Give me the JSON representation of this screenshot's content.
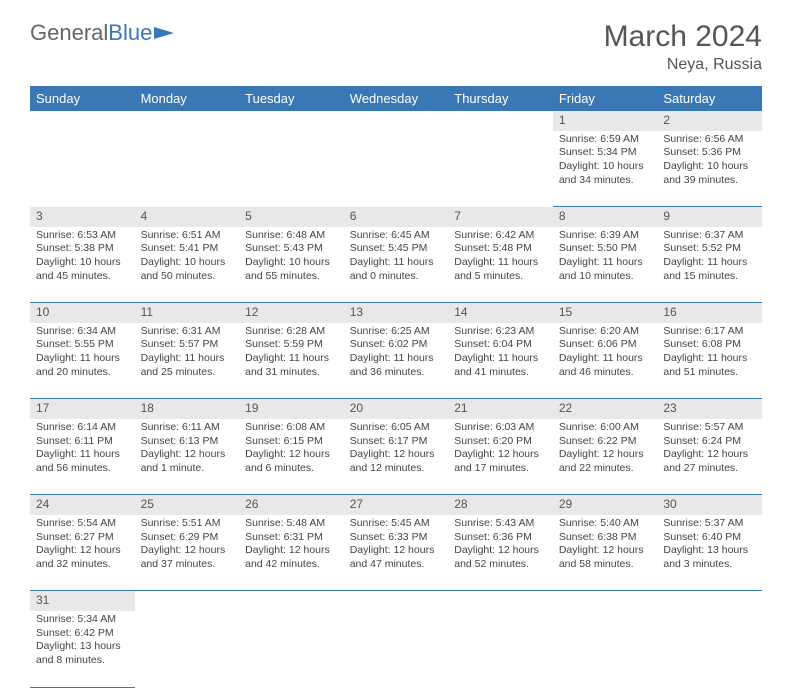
{
  "logo": {
    "general": "General",
    "blue": "Blue"
  },
  "title": "March 2024",
  "location": "Neya, Russia",
  "dayHeaders": [
    "Sunday",
    "Monday",
    "Tuesday",
    "Wednesday",
    "Thursday",
    "Friday",
    "Saturday"
  ],
  "colors": {
    "headerBg": "#3a78b5",
    "headerText": "#ffffff",
    "dayNumBg": "#e8e8e8",
    "border": "#3a78b5",
    "text": "#444444"
  },
  "weeks": [
    [
      null,
      null,
      null,
      null,
      null,
      {
        "n": "1",
        "sr": "Sunrise: 6:59 AM",
        "ss": "Sunset: 5:34 PM",
        "dl1": "Daylight: 10 hours",
        "dl2": "and 34 minutes."
      },
      {
        "n": "2",
        "sr": "Sunrise: 6:56 AM",
        "ss": "Sunset: 5:36 PM",
        "dl1": "Daylight: 10 hours",
        "dl2": "and 39 minutes."
      }
    ],
    [
      {
        "n": "3",
        "sr": "Sunrise: 6:53 AM",
        "ss": "Sunset: 5:38 PM",
        "dl1": "Daylight: 10 hours",
        "dl2": "and 45 minutes."
      },
      {
        "n": "4",
        "sr": "Sunrise: 6:51 AM",
        "ss": "Sunset: 5:41 PM",
        "dl1": "Daylight: 10 hours",
        "dl2": "and 50 minutes."
      },
      {
        "n": "5",
        "sr": "Sunrise: 6:48 AM",
        "ss": "Sunset: 5:43 PM",
        "dl1": "Daylight: 10 hours",
        "dl2": "and 55 minutes."
      },
      {
        "n": "6",
        "sr": "Sunrise: 6:45 AM",
        "ss": "Sunset: 5:45 PM",
        "dl1": "Daylight: 11 hours",
        "dl2": "and 0 minutes."
      },
      {
        "n": "7",
        "sr": "Sunrise: 6:42 AM",
        "ss": "Sunset: 5:48 PM",
        "dl1": "Daylight: 11 hours",
        "dl2": "and 5 minutes."
      },
      {
        "n": "8",
        "sr": "Sunrise: 6:39 AM",
        "ss": "Sunset: 5:50 PM",
        "dl1": "Daylight: 11 hours",
        "dl2": "and 10 minutes."
      },
      {
        "n": "9",
        "sr": "Sunrise: 6:37 AM",
        "ss": "Sunset: 5:52 PM",
        "dl1": "Daylight: 11 hours",
        "dl2": "and 15 minutes."
      }
    ],
    [
      {
        "n": "10",
        "sr": "Sunrise: 6:34 AM",
        "ss": "Sunset: 5:55 PM",
        "dl1": "Daylight: 11 hours",
        "dl2": "and 20 minutes."
      },
      {
        "n": "11",
        "sr": "Sunrise: 6:31 AM",
        "ss": "Sunset: 5:57 PM",
        "dl1": "Daylight: 11 hours",
        "dl2": "and 25 minutes."
      },
      {
        "n": "12",
        "sr": "Sunrise: 6:28 AM",
        "ss": "Sunset: 5:59 PM",
        "dl1": "Daylight: 11 hours",
        "dl2": "and 31 minutes."
      },
      {
        "n": "13",
        "sr": "Sunrise: 6:25 AM",
        "ss": "Sunset: 6:02 PM",
        "dl1": "Daylight: 11 hours",
        "dl2": "and 36 minutes."
      },
      {
        "n": "14",
        "sr": "Sunrise: 6:23 AM",
        "ss": "Sunset: 6:04 PM",
        "dl1": "Daylight: 11 hours",
        "dl2": "and 41 minutes."
      },
      {
        "n": "15",
        "sr": "Sunrise: 6:20 AM",
        "ss": "Sunset: 6:06 PM",
        "dl1": "Daylight: 11 hours",
        "dl2": "and 46 minutes."
      },
      {
        "n": "16",
        "sr": "Sunrise: 6:17 AM",
        "ss": "Sunset: 6:08 PM",
        "dl1": "Daylight: 11 hours",
        "dl2": "and 51 minutes."
      }
    ],
    [
      {
        "n": "17",
        "sr": "Sunrise: 6:14 AM",
        "ss": "Sunset: 6:11 PM",
        "dl1": "Daylight: 11 hours",
        "dl2": "and 56 minutes."
      },
      {
        "n": "18",
        "sr": "Sunrise: 6:11 AM",
        "ss": "Sunset: 6:13 PM",
        "dl1": "Daylight: 12 hours",
        "dl2": "and 1 minute."
      },
      {
        "n": "19",
        "sr": "Sunrise: 6:08 AM",
        "ss": "Sunset: 6:15 PM",
        "dl1": "Daylight: 12 hours",
        "dl2": "and 6 minutes."
      },
      {
        "n": "20",
        "sr": "Sunrise: 6:05 AM",
        "ss": "Sunset: 6:17 PM",
        "dl1": "Daylight: 12 hours",
        "dl2": "and 12 minutes."
      },
      {
        "n": "21",
        "sr": "Sunrise: 6:03 AM",
        "ss": "Sunset: 6:20 PM",
        "dl1": "Daylight: 12 hours",
        "dl2": "and 17 minutes."
      },
      {
        "n": "22",
        "sr": "Sunrise: 6:00 AM",
        "ss": "Sunset: 6:22 PM",
        "dl1": "Daylight: 12 hours",
        "dl2": "and 22 minutes."
      },
      {
        "n": "23",
        "sr": "Sunrise: 5:57 AM",
        "ss": "Sunset: 6:24 PM",
        "dl1": "Daylight: 12 hours",
        "dl2": "and 27 minutes."
      }
    ],
    [
      {
        "n": "24",
        "sr": "Sunrise: 5:54 AM",
        "ss": "Sunset: 6:27 PM",
        "dl1": "Daylight: 12 hours",
        "dl2": "and 32 minutes."
      },
      {
        "n": "25",
        "sr": "Sunrise: 5:51 AM",
        "ss": "Sunset: 6:29 PM",
        "dl1": "Daylight: 12 hours",
        "dl2": "and 37 minutes."
      },
      {
        "n": "26",
        "sr": "Sunrise: 5:48 AM",
        "ss": "Sunset: 6:31 PM",
        "dl1": "Daylight: 12 hours",
        "dl2": "and 42 minutes."
      },
      {
        "n": "27",
        "sr": "Sunrise: 5:45 AM",
        "ss": "Sunset: 6:33 PM",
        "dl1": "Daylight: 12 hours",
        "dl2": "and 47 minutes."
      },
      {
        "n": "28",
        "sr": "Sunrise: 5:43 AM",
        "ss": "Sunset: 6:36 PM",
        "dl1": "Daylight: 12 hours",
        "dl2": "and 52 minutes."
      },
      {
        "n": "29",
        "sr": "Sunrise: 5:40 AM",
        "ss": "Sunset: 6:38 PM",
        "dl1": "Daylight: 12 hours",
        "dl2": "and 58 minutes."
      },
      {
        "n": "30",
        "sr": "Sunrise: 5:37 AM",
        "ss": "Sunset: 6:40 PM",
        "dl1": "Daylight: 13 hours",
        "dl2": "and 3 minutes."
      }
    ],
    [
      {
        "n": "31",
        "sr": "Sunrise: 5:34 AM",
        "ss": "Sunset: 6:42 PM",
        "dl1": "Daylight: 13 hours",
        "dl2": "and 8 minutes."
      },
      null,
      null,
      null,
      null,
      null,
      null
    ]
  ]
}
